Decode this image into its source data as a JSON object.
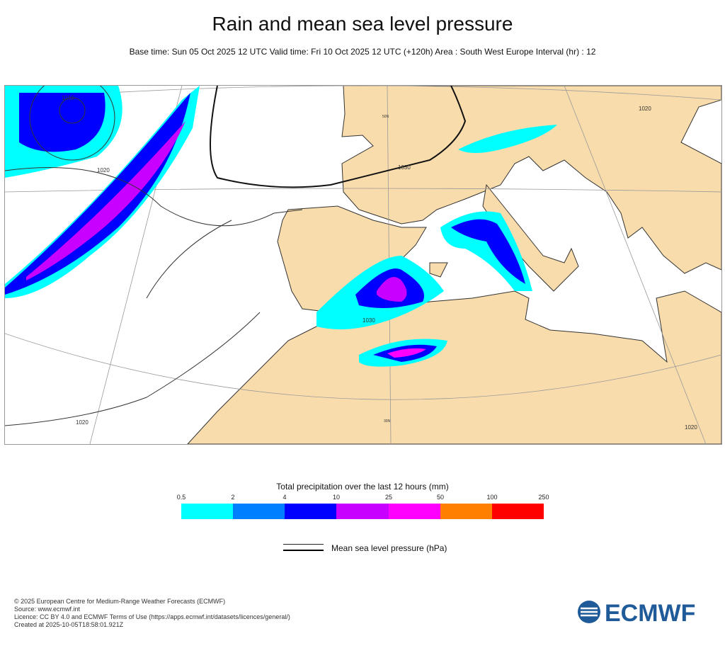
{
  "title": "Rain and mean sea level pressure",
  "subtitle": "Base time: Sun 05 Oct 2025 12 UTC Valid time: Fri 10 Oct 2025 12 UTC (+120h) Area : South West Europe Interval (hr) : 12",
  "map": {
    "contour_labels": [
      "1010",
      "1020",
      "1030",
      "1030",
      "1020",
      "1020",
      "1020"
    ],
    "lat_labels": [
      "50N",
      "30N"
    ],
    "land_color": "#f9dcac",
    "pressure_color": "#333333"
  },
  "legend": {
    "title": "Total precipitation over the last 12 hours (mm)",
    "ticks": [
      "0.5",
      "2",
      "4",
      "10",
      "25",
      "50",
      "100",
      "250"
    ],
    "colors": [
      "#00ffff",
      "#0080ff",
      "#0000ff",
      "#c800ff",
      "#ff00ff",
      "#ff8000",
      "#ff0000"
    ],
    "pressure_label": "Mean sea level pressure (hPa)"
  },
  "footer": {
    "lines": [
      "© 2025 European Centre for Medium-Range Weather Forecasts (ECMWF)",
      "Source: www.ecmwf.int",
      "Licence: CC BY 4.0 and ECMWF Terms of Use (https://apps.ecmwf.int/datasets/licences/general/)",
      "Created at 2025-10-05T18:58:01.921Z"
    ],
    "logo": "ECMWF"
  }
}
